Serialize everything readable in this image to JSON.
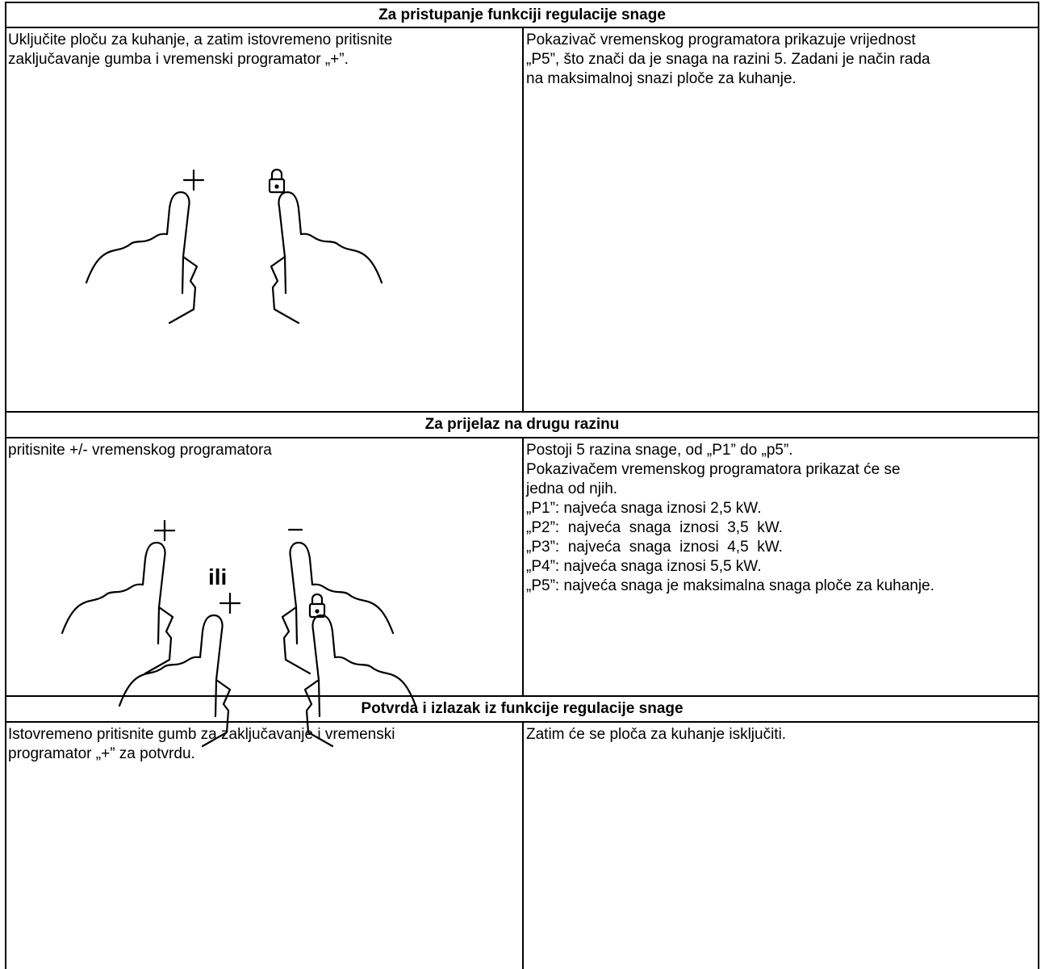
{
  "sections": [
    {
      "header": "Za pristupanje funkciji regulacije snage",
      "left": [
        "Uključite ploču za kuhanje, a zatim istovremeno pritisnite",
        "zaključavanje gumba i vremenski programator „+”."
      ],
      "right": [
        "Pokazivač vremenskog programatora prikazuje vrijednost",
        "„P5”, što znači da je snaga na razini 5. Zadani je način rada",
        "na maksimalnoj snazi ploče za kuhanje."
      ]
    },
    {
      "header": "Za prijelaz na drugu razinu",
      "left": [
        "pritisnite +/- vremenskog programatora"
      ],
      "connector": "ili",
      "right": [
        "Postoji 5 razina snage, od „P1” do „p5”.",
        "Pokazivačem vremenskog programatora prikazat će se",
        "jedna od njih.",
        "„P1”: najveća snaga iznosi 2,5 kW.",
        "„P2”:  najveća  snaga  iznosi  3,5  kW.",
        "„P3”:  najveća  snaga  iznosi  4,5  kW.",
        "„P4”: najveća snaga iznosi 5,5 kW.",
        "„P5”: najveća snaga je maksimalna snaga ploče za kuhanje."
      ]
    },
    {
      "header": "Potvrda i izlazak iz funkcije regulacije snage",
      "left": [
        "Istovremeno pritisnite gumb za zaključavanje i vremenski",
        "programator „+” za potvrdu."
      ],
      "right": [
        "Zatim će se ploča za kuhanje isključiti."
      ]
    }
  ]
}
